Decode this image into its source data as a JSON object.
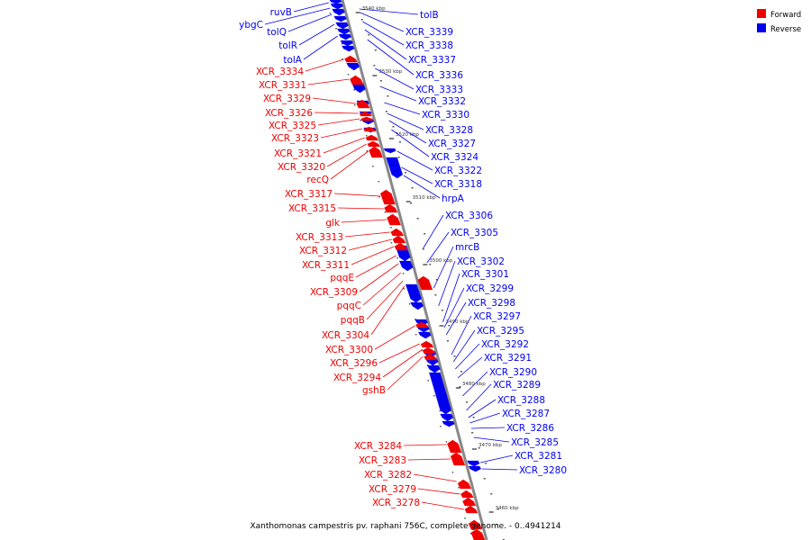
{
  "caption": "Xanthomonas campestris pv. raphani 756C, complete genome. - 0..4941214",
  "legend": [
    {
      "label": "Forward",
      "color": "#ee0000"
    },
    {
      "label": "Reverse",
      "color": "#0000ee"
    }
  ],
  "colors": {
    "forward": "#ee0000",
    "reverse": "#0000ee",
    "backbone": "#888888"
  },
  "ticks": [
    "3540 kbp",
    "3530 kbp",
    "3520 kbp",
    "3510 kbp",
    "3500 kbp",
    "3490 kbp",
    "3480 kbp",
    "3470 kbp",
    "3460 kbp"
  ],
  "reverse_labels": [
    "tolB",
    "XCR_3339",
    "XCR_3338",
    "XCR_3337",
    "XCR_3336",
    "XCR_3333",
    "XCR_3332",
    "XCR_3330",
    "XCR_3328",
    "XCR_3327",
    "XCR_3324",
    "XCR_3322",
    "XCR_3318",
    "hrpA",
    "XCR_3306",
    "XCR_3305",
    "mrcB",
    "XCR_3302",
    "XCR_3301",
    "XCR_3299",
    "XCR_3298",
    "XCR_3297",
    "XCR_3295",
    "XCR_3292",
    "XCR_3291",
    "XCR_3290",
    "XCR_3289",
    "XCR_3288",
    "XCR_3287",
    "XCR_3286",
    "XCR_3285",
    "XCR_3281",
    "XCR_3280"
  ],
  "reverse_left_labels": [
    "ruvB",
    "ybgC",
    "tolQ",
    "tolR",
    "tolA"
  ],
  "forward_labels": [
    "XCR_3334",
    "XCR_3331",
    "XCR_3329",
    "XCR_3326",
    "XCR_3325",
    "XCR_3323",
    "XCR_3321",
    "XCR_3320",
    "recQ",
    "XCR_3317",
    "XCR_3315",
    "glk",
    "XCR_3313",
    "XCR_3312",
    "XCR_3311",
    "pqqE",
    "XCR_3309",
    "pqqC",
    "pqqB",
    "XCR_3304",
    "XCR_3300",
    "XCR_3296",
    "XCR_3294",
    "gshB",
    "XCR_3284",
    "XCR_3283",
    "XCR_3282",
    "XCR_3279",
    "XCR_3278"
  ]
}
